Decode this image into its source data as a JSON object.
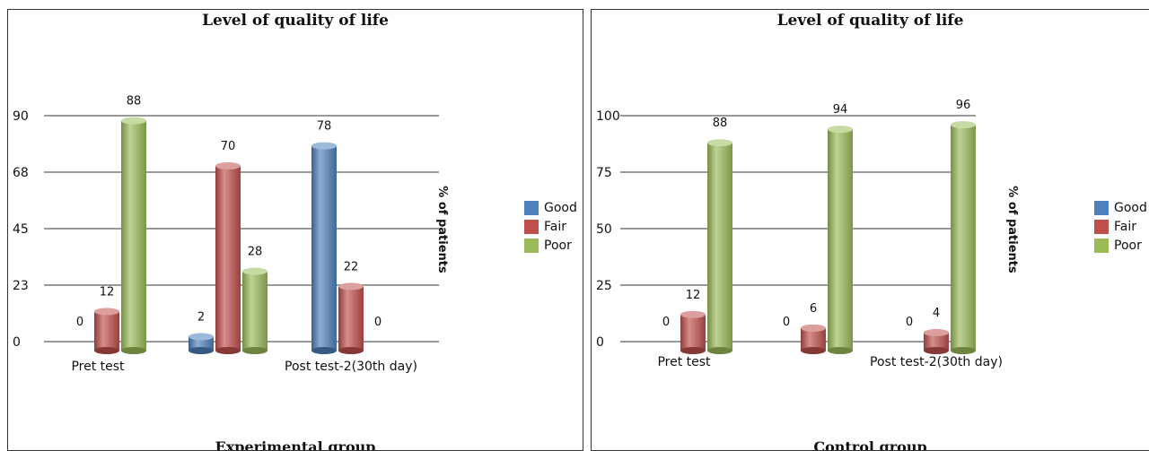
{
  "colors": {
    "Good": "#4f81bd",
    "Fair": "#c0504d",
    "Poor": "#9bbb59"
  },
  "chart_data": [
    {
      "type": "bar",
      "title": "Level of quality of life",
      "group_label": "Experimental group",
      "ylabel": "% of patients",
      "yticks": [
        "0",
        "23",
        "45",
        "68",
        "90"
      ],
      "ylim": [
        0,
        90
      ],
      "categories": [
        "Pret test",
        "",
        "Post test-2(30th day)"
      ],
      "series": [
        {
          "name": "Good",
          "values": [
            0,
            2,
            78
          ]
        },
        {
          "name": "Fair",
          "values": [
            12,
            70,
            22
          ]
        },
        {
          "name": "Poor",
          "values": [
            88,
            28,
            0
          ]
        }
      ],
      "legend": "right"
    },
    {
      "type": "bar",
      "title": "Level of quality of life",
      "group_label": "Control  group",
      "ylabel": "% of patients",
      "yticks": [
        "0",
        "25",
        "50",
        "75",
        "100"
      ],
      "ylim": [
        0,
        100
      ],
      "categories": [
        "Pret test",
        "",
        "Post test-2(30th day)"
      ],
      "series": [
        {
          "name": "Good",
          "values": [
            0,
            0,
            0
          ]
        },
        {
          "name": "Fair",
          "values": [
            12,
            6,
            4
          ]
        },
        {
          "name": "Poor",
          "values": [
            88,
            94,
            96
          ]
        }
      ],
      "legend": "right"
    }
  ]
}
